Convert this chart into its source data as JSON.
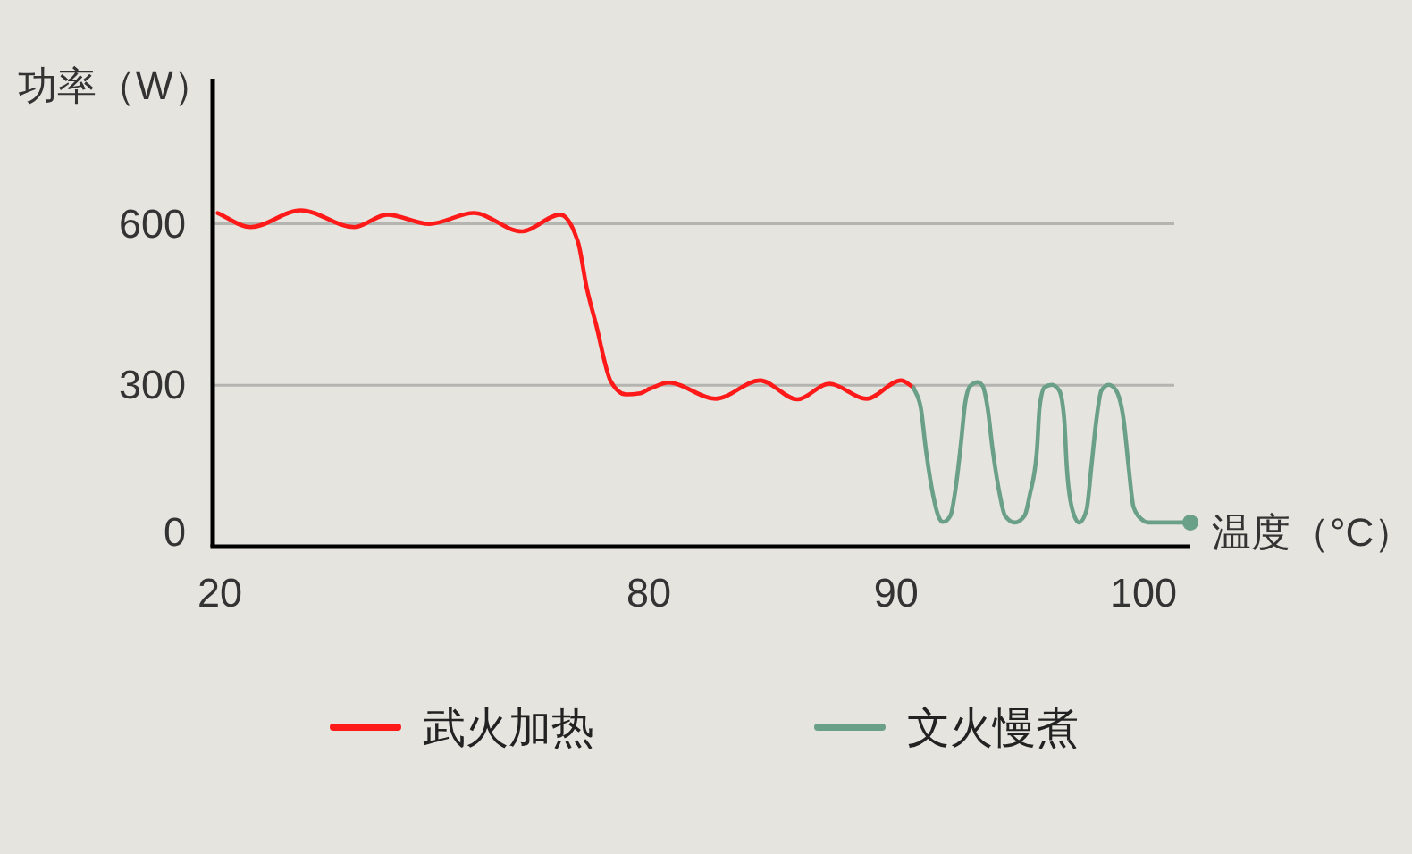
{
  "chart_data": [
    {
      "type": "line",
      "ylabel": "功率（W）",
      "xlim": [
        19,
        80
      ],
      "xticks": [
        20,
        80
      ],
      "ylim": [
        0,
        870
      ],
      "yticks": [
        0,
        300,
        600
      ],
      "grid": "y",
      "series": [
        {
          "color": "#ff1a1a",
          "x": [
            19.7,
            24.3,
            31.3,
            38.8,
            43.4,
            49.3,
            55.5,
            62.2,
            67.6,
            70.1,
            71.3,
            72.6,
            74.7,
            76.8,
            78.8,
            80.0
          ],
          "values": [
            620,
            594,
            625,
            594,
            617,
            600,
            620,
            586,
            617,
            566,
            482,
            414,
            307,
            283,
            285,
            293
          ]
        }
      ]
    },
    {
      "type": "line",
      "xlabel": "温度（°C）",
      "xlim": [
        80,
        101.9
      ],
      "xticks": [
        90,
        100
      ],
      "ylim": [
        0,
        600
      ],
      "yticks": [
        0,
        300,
        600
      ],
      "grid": "y",
      "legend": "bottom",
      "tick_labels": "x",
      "series": [
        {
          "name": "武火加热",
          "color": "#ff1a1a",
          "x": [
            80.0,
            80.8,
            82.7,
            84.5,
            86.0,
            87.3,
            88.8,
            90.2,
            90.7
          ],
          "values": [
            293,
            305,
            275,
            309,
            274,
            303,
            275,
            309,
            296
          ]
        },
        {
          "name": "文火慢煮",
          "color": "#6a9f88",
          "x": [
            90.7,
            91.0,
            91.2,
            91.5,
            91.7,
            91.9,
            92.2,
            92.4,
            92.6,
            92.8,
            93.0,
            93.3,
            93.5,
            93.7,
            93.9,
            94.2,
            94.4,
            94.8,
            95.2,
            95.4,
            95.7,
            95.8,
            96.0,
            96.3,
            96.6,
            96.8,
            96.9,
            97.1,
            97.4,
            97.7,
            97.9,
            98.1,
            98.3,
            98.6,
            98.9,
            99.2,
            99.4,
            99.6,
            99.9,
            100.2,
            101.9
          ],
          "values": [
            296,
            258,
            182,
            95,
            58,
            46,
            58,
            106,
            182,
            269,
            299,
            306,
            299,
            258,
            182,
            95,
            58,
            45,
            58,
            95,
            182,
            258,
            296,
            301,
            290,
            236,
            150,
            74,
            45,
            68,
            150,
            236,
            290,
            301,
            290,
            236,
            150,
            74,
            52,
            45,
            45
          ]
        }
      ]
    }
  ]
}
